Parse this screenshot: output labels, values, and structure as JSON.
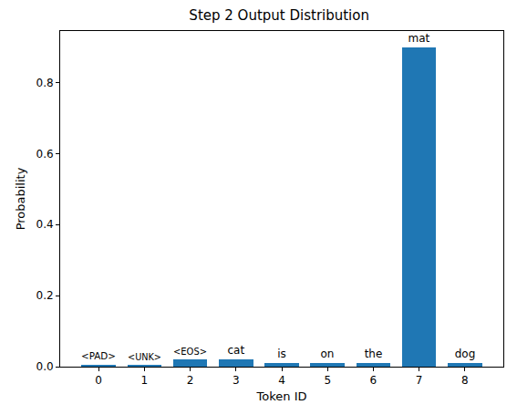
{
  "chart_data": {
    "type": "bar",
    "title": "Step 2 Output Distribution",
    "x_label": "Token ID",
    "y_label": "Probability",
    "x": [
      0,
      1,
      2,
      3,
      4,
      5,
      6,
      7,
      8
    ],
    "values": [
      0.005,
      0.005,
      0.02,
      0.02,
      0.01,
      0.01,
      0.01,
      0.9,
      0.01
    ],
    "annotations": [
      "<PAD>",
      "<UNK>",
      "<EOS>",
      "cat",
      "is",
      "on",
      "the",
      "mat",
      "dog"
    ],
    "color": "#1f77b4",
    "xlim": [
      -0.84,
      8.84
    ],
    "xticks": [
      0,
      1,
      2,
      3,
      4,
      5,
      6,
      7,
      8
    ],
    "ylim": [
      0,
      0.945
    ],
    "yticks": [
      {
        "value": 0,
        "label": "0.0"
      },
      0.2,
      0.4,
      0.6,
      0.8
    ],
    "grid": false
  }
}
